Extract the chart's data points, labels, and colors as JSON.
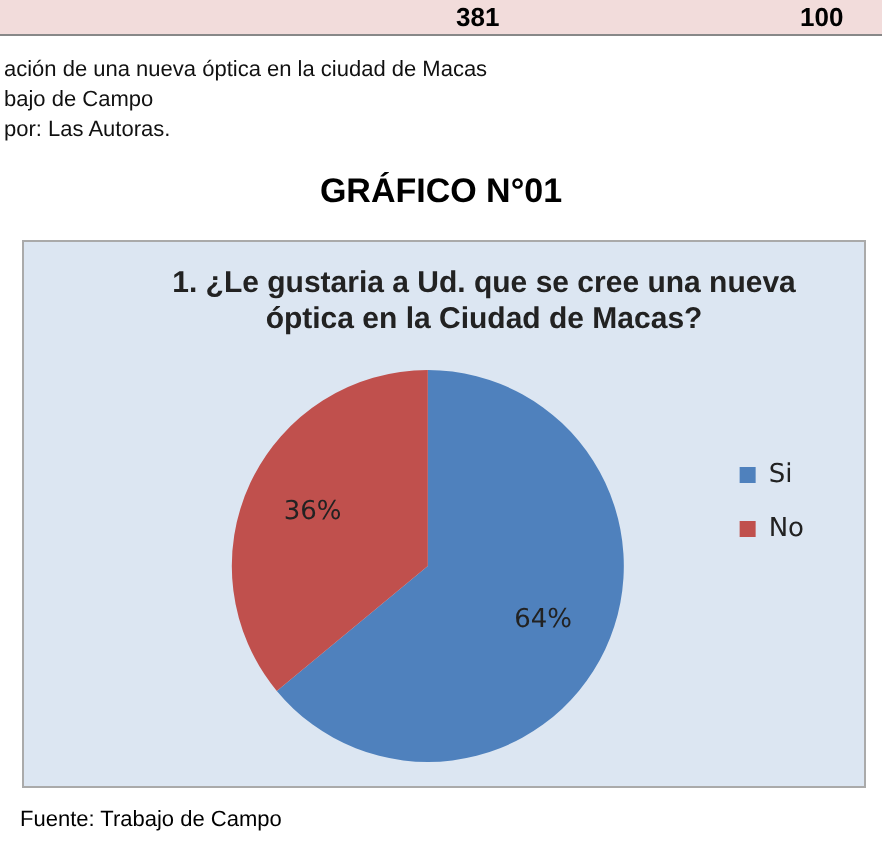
{
  "chart_data": {
    "type": "pie",
    "title": "GRÁFICO N°01",
    "subtitle": "1. ¿Le gustaria a Ud. que se cree una nueva óptica en la Ciudad de Macas?",
    "categories": [
      "Si",
      "No"
    ],
    "values": [
      64,
      36
    ],
    "colors": [
      "#4f81bd",
      "#c0504d"
    ],
    "value_labels": [
      "64%",
      "36%"
    ],
    "legend": "right",
    "annotations": [
      "381",
      "100",
      "ación de una nueva óptica en la ciudad de Macas",
      "bajo de Campo",
      "por: Las Autoras.",
      "Fuente: Trabajo de Campo"
    ]
  }
}
